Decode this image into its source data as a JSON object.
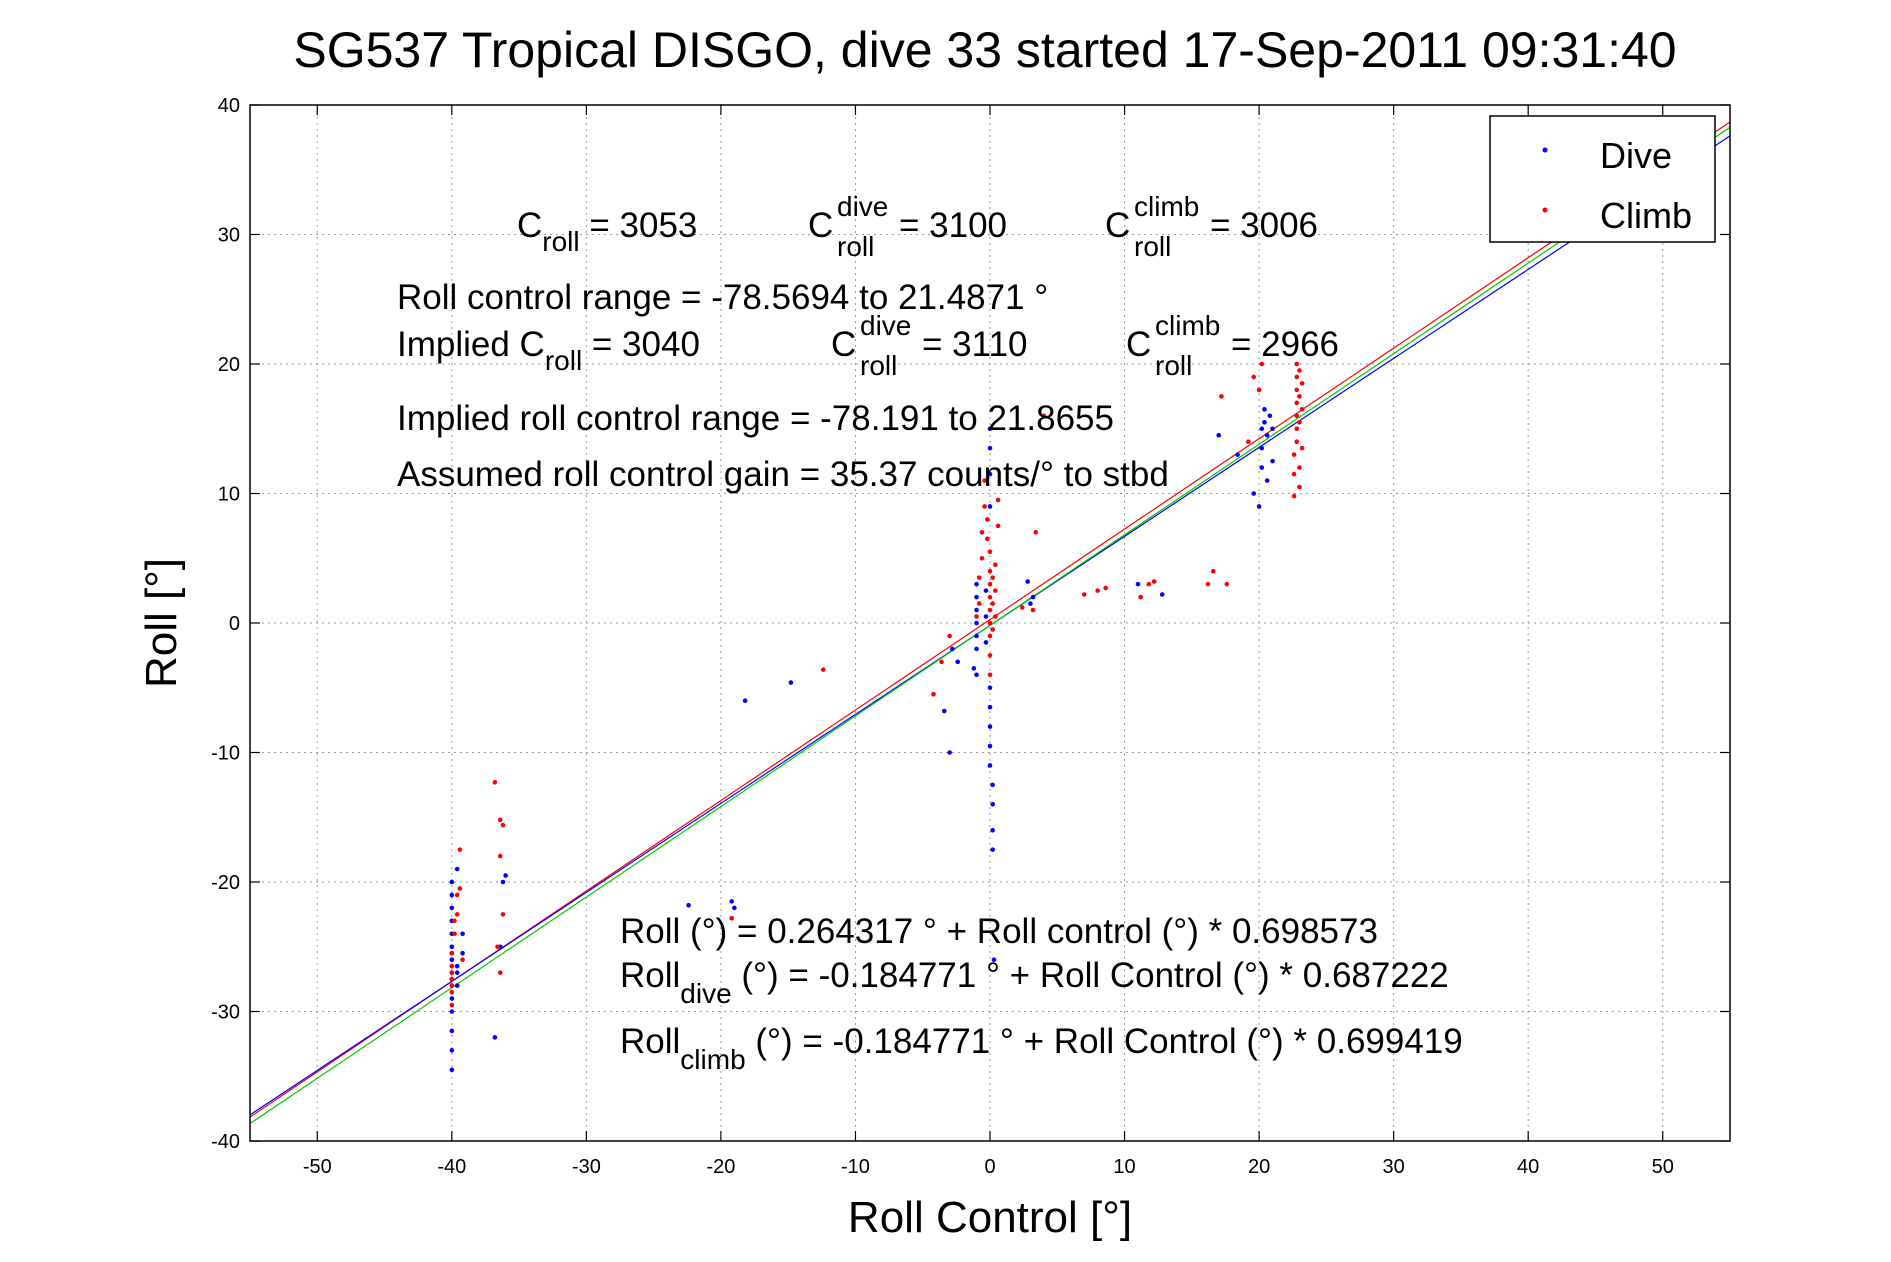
{
  "chart_data": {
    "type": "scatter",
    "title": "SG537 Tropical DISGO, dive 33 started 17-Sep-2011 09:31:40",
    "xlabel": "Roll Control [°]",
    "ylabel": "Roll [°]",
    "xlim": [
      -55,
      55
    ],
    "ylim": [
      -40,
      40
    ],
    "xticks": [
      -50,
      -40,
      -30,
      -20,
      -10,
      0,
      10,
      20,
      30,
      40,
      50
    ],
    "yticks": [
      -40,
      -30,
      -20,
      -10,
      0,
      10,
      20,
      30,
      40
    ],
    "grid": true,
    "legend_position": "top-right",
    "series": [
      {
        "name": "Dive",
        "color": "#0000ff",
        "points": [
          [
            -40,
            -34.5
          ],
          [
            -40,
            -33.0
          ],
          [
            -40,
            -31.5
          ],
          [
            -40,
            -30.0
          ],
          [
            -40,
            -29.0
          ],
          [
            -40,
            -28.0
          ],
          [
            -40,
            -27.5
          ],
          [
            -40,
            -27.0
          ],
          [
            -40,
            -26.5
          ],
          [
            -40,
            -26.0
          ],
          [
            -40,
            -25.5
          ],
          [
            -40,
            -25.0
          ],
          [
            -40,
            -24.0
          ],
          [
            -40,
            -23.0
          ],
          [
            -40,
            -22.0
          ],
          [
            -40,
            -21.0
          ],
          [
            -40,
            -20.0
          ],
          [
            -39.6,
            -19.0
          ],
          [
            -39.6,
            -26.5
          ],
          [
            -39.6,
            -27.0
          ],
          [
            -39.6,
            -28.0
          ],
          [
            -39.2,
            -25.5
          ],
          [
            -39.2,
            -24.0
          ],
          [
            -36.8,
            -32.0
          ],
          [
            -36.4,
            -25.0
          ],
          [
            -36.2,
            -20.0
          ],
          [
            -36.0,
            -19.5
          ],
          [
            -22.4,
            -21.8
          ],
          [
            -19.2,
            -21.5
          ],
          [
            -19.0,
            -22.0
          ],
          [
            -18.2,
            -6.0
          ],
          [
            -14.8,
            -4.6
          ],
          [
            -3.4,
            -6.8
          ],
          [
            -3.0,
            -10.0
          ],
          [
            -2.8,
            -2.0
          ],
          [
            -2.4,
            -3.0
          ],
          [
            -1.2,
            -3.5
          ],
          [
            -1.0,
            -4.0
          ],
          [
            -1.0,
            -2.0
          ],
          [
            -1.0,
            -1.0
          ],
          [
            -1.0,
            0.0
          ],
          [
            -1.0,
            1.0
          ],
          [
            -1.0,
            2.0
          ],
          [
            -1.0,
            3.0
          ],
          [
            -0.3,
            -1.5
          ],
          [
            -0.3,
            0.5
          ],
          [
            -0.3,
            2.5
          ],
          [
            0.0,
            -5.0
          ],
          [
            0.0,
            -8.0
          ],
          [
            0.0,
            -11.0
          ],
          [
            0.2,
            -12.5
          ],
          [
            0.2,
            -14.0
          ],
          [
            0.2,
            -16.0
          ],
          [
            0.2,
            -17.5
          ],
          [
            0.0,
            -6.5
          ],
          [
            0.0,
            -9.5
          ],
          [
            0.0,
            9.0
          ],
          [
            0.0,
            11.5
          ],
          [
            0.0,
            13.5
          ],
          [
            0.0,
            15.0
          ],
          [
            0.3,
            -26.0
          ],
          [
            2.8,
            3.2
          ],
          [
            3.0,
            1.5
          ],
          [
            3.2,
            2.0
          ],
          [
            12.8,
            2.2
          ],
          [
            11.0,
            3.0
          ],
          [
            17.0,
            14.5
          ],
          [
            18.4,
            13.0
          ],
          [
            19.6,
            10.0
          ],
          [
            20.0,
            9.0
          ],
          [
            20.2,
            12.0
          ],
          [
            20.2,
            13.5
          ],
          [
            20.2,
            15.0
          ],
          [
            20.4,
            15.5
          ],
          [
            20.4,
            16.5
          ],
          [
            20.6,
            14.5
          ],
          [
            20.6,
            11.0
          ],
          [
            20.8,
            16.0
          ],
          [
            21.0,
            15.0
          ],
          [
            21.0,
            12.5
          ]
        ]
      },
      {
        "name": "Climb",
        "color": "#ff0000",
        "points": [
          [
            -40,
            -25.5
          ],
          [
            -40,
            -26.5
          ],
          [
            -40,
            -27.0
          ],
          [
            -40,
            -27.5
          ],
          [
            -40,
            -28.0
          ],
          [
            -40,
            -28.5
          ],
          [
            -40,
            -29.5
          ],
          [
            -39.8,
            -24.0
          ],
          [
            -39.8,
            -23.0
          ],
          [
            -39.6,
            -21.0
          ],
          [
            -39.6,
            -22.5
          ],
          [
            -39.4,
            -17.5
          ],
          [
            -39.4,
            -20.5
          ],
          [
            -39.2,
            -26.0
          ],
          [
            -36.8,
            -12.3
          ],
          [
            -36.4,
            -15.2
          ],
          [
            -36.2,
            -15.6
          ],
          [
            -36.4,
            -18.0
          ],
          [
            -36.2,
            -22.5
          ],
          [
            -36.6,
            -25.0
          ],
          [
            -36.4,
            -27.0
          ],
          [
            -19.2,
            -22.8
          ],
          [
            -12.4,
            -3.6
          ],
          [
            -4.2,
            -5.5
          ],
          [
            -3.6,
            -3.0
          ],
          [
            -3.0,
            -1.0
          ],
          [
            -1.0,
            0.5
          ],
          [
            -0.8,
            1.5
          ],
          [
            -0.8,
            3.5
          ],
          [
            -0.6,
            5.0
          ],
          [
            -0.6,
            7.0
          ],
          [
            -0.4,
            9.0
          ],
          [
            -0.4,
            11.0
          ],
          [
            -0.2,
            6.5
          ],
          [
            -0.2,
            8.0
          ],
          [
            0.0,
            -1.0
          ],
          [
            0.0,
            -2.5
          ],
          [
            0.0,
            -4.0
          ],
          [
            0.0,
            0.0
          ],
          [
            0.0,
            1.0
          ],
          [
            0.0,
            2.0
          ],
          [
            0.0,
            3.0
          ],
          [
            0.0,
            4.0
          ],
          [
            0.0,
            5.5
          ],
          [
            0.2,
            -0.5
          ],
          [
            0.2,
            1.5
          ],
          [
            0.2,
            3.5
          ],
          [
            0.4,
            0.5
          ],
          [
            0.4,
            2.5
          ],
          [
            0.4,
            4.5
          ],
          [
            0.6,
            7.5
          ],
          [
            0.6,
            9.5
          ],
          [
            2.4,
            1.2
          ],
          [
            3.2,
            1.0
          ],
          [
            3.4,
            7.0
          ],
          [
            4.0,
            16.0
          ],
          [
            7.0,
            2.2
          ],
          [
            8.0,
            2.5
          ],
          [
            8.6,
            2.7
          ],
          [
            11.2,
            2.0
          ],
          [
            11.8,
            3.0
          ],
          [
            12.2,
            3.2
          ],
          [
            16.2,
            3.0
          ],
          [
            16.6,
            4.0
          ],
          [
            17.6,
            3.0
          ],
          [
            17.2,
            17.5
          ],
          [
            19.2,
            14.0
          ],
          [
            19.6,
            19.0
          ],
          [
            20.0,
            18.0
          ],
          [
            20.2,
            20.0
          ],
          [
            22.6,
            9.8
          ],
          [
            22.6,
            11.5
          ],
          [
            22.6,
            13.0
          ],
          [
            22.8,
            14.0
          ],
          [
            22.8,
            15.0
          ],
          [
            22.8,
            16.0
          ],
          [
            22.8,
            17.0
          ],
          [
            22.8,
            18.0
          ],
          [
            22.8,
            19.0
          ],
          [
            22.8,
            20.0
          ],
          [
            23.0,
            10.5
          ],
          [
            23.0,
            12.0
          ],
          [
            23.0,
            15.5
          ],
          [
            23.0,
            17.5
          ],
          [
            23.0,
            19.5
          ],
          [
            23.2,
            13.5
          ],
          [
            23.2,
            16.5
          ],
          [
            23.2,
            18.5
          ]
        ]
      }
    ],
    "fit_lines": [
      {
        "color": "#ff0000",
        "intercept": 0.264317,
        "slope": 0.698573
      },
      {
        "color": "#0000ff",
        "intercept": -0.184771,
        "slope": 0.687222
      },
      {
        "color": "#00cc00",
        "intercept": -0.184771,
        "slope": 0.699419
      }
    ]
  },
  "annotations": {
    "c_roll": {
      "pre": "C",
      "sub": "roll",
      "post": " = 3053"
    },
    "c_roll_dive": {
      "pre": "C",
      "sup": "dive",
      "sub": "roll",
      "post": " = 3100"
    },
    "c_roll_climb": {
      "pre": "C",
      "sup": "climb",
      "sub": "roll",
      "post": " = 3006"
    },
    "roll_control_range": "Roll control range = -78.5694 to 21.4871 °",
    "implied_c_roll": {
      "pre": "Implied C",
      "sub": "roll",
      "post": " = 3040"
    },
    "implied_c_roll_dive": {
      "pre": "C",
      "sup": "dive",
      "sub": "roll",
      "post": " = 3110"
    },
    "implied_c_roll_climb": {
      "pre": "C",
      "sup": "climb",
      "sub": "roll",
      "post": " = 2966"
    },
    "implied_range": "Implied roll control range = -78.191 to 21.8655",
    "assumed_gain": "Assumed roll control gain = 35.37 counts/° to stbd",
    "fit_all": "Roll (°) = 0.264317 ° + Roll control (°) * 0.698573",
    "fit_dive": {
      "pre": "Roll",
      "sub": "dive",
      "post": " (°) = -0.184771 ° + Roll Control (°) * 0.687222"
    },
    "fit_climb": {
      "pre": "Roll",
      "sub": "climb",
      "post": " (°) = -0.184771 ° + Roll Control (°) * 0.699419"
    }
  }
}
